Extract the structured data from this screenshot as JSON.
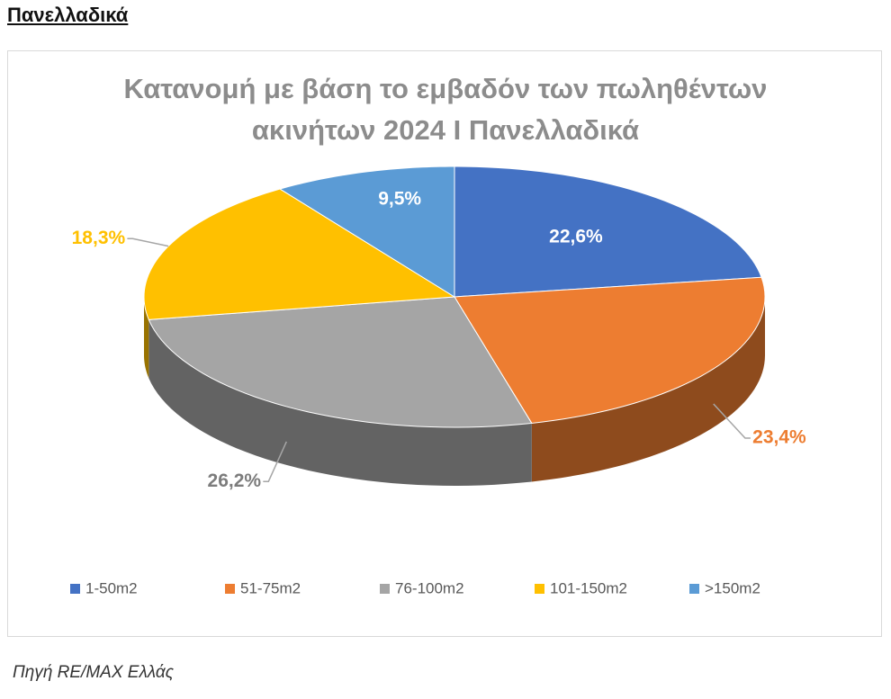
{
  "heading": "Πανελλαδικά",
  "chart_data": {
    "type": "pie",
    "title": "Κατανομή με βάση το εμβαδόν των πωληθέντων ακινήτων 2024 Ι Πανελλαδικά",
    "categories": [
      "1-50m2",
      "51-75m2",
      "76-100m2",
      "101-150m2",
      ">150m2"
    ],
    "values": [
      22.6,
      23.4,
      26.2,
      18.3,
      9.5
    ],
    "value_labels": [
      "22,6%",
      "23,4%",
      "26,2%",
      "18,3%",
      "9,5%"
    ],
    "colors": [
      "#4472c4",
      "#ed7d31",
      "#a5a5a5",
      "#ffc000",
      "#5b9bd5"
    ]
  },
  "source": "Πηγή RE/MAX Ελλάς"
}
